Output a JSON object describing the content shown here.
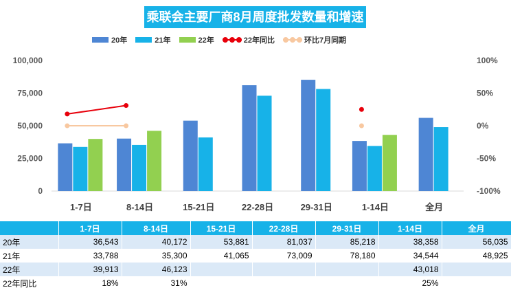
{
  "title": "乘联会主要厂商8月周度批发数量和增速",
  "legend": {
    "s20": "20年",
    "s21": "21年",
    "s22": "22年",
    "yoy22": "22年同比",
    "mom": "环比7月同期"
  },
  "colors": {
    "s20": "#4e86d4",
    "s21": "#17b2e8",
    "s22": "#92d050",
    "yoy22": "#e8000b",
    "mom": "#f8c8a0",
    "header": "#17b2e8"
  },
  "chart_data": {
    "type": "bar",
    "categories": [
      "1-7日",
      "8-14日",
      "15-21日",
      "22-28日",
      "29-31日",
      "1-14日",
      "全月"
    ],
    "series": [
      {
        "name": "20年",
        "values": [
          36543,
          40172,
          53881,
          81037,
          85218,
          38358,
          56035
        ]
      },
      {
        "name": "21年",
        "values": [
          33788,
          35300,
          41065,
          73009,
          78180,
          34544,
          48925
        ]
      },
      {
        "name": "22年",
        "values": [
          39913,
          46123,
          null,
          null,
          null,
          43018,
          null
        ]
      }
    ],
    "lines": [
      {
        "name": "22年同比",
        "values": [
          18,
          31,
          null,
          null,
          null,
          25,
          null
        ],
        "axis": "right"
      },
      {
        "name": "环比7月同期",
        "values": [
          0,
          0,
          null,
          null,
          null,
          0,
          null
        ],
        "axis": "right"
      }
    ],
    "y_left": {
      "min": 0,
      "max": 100000,
      "ticks": [
        "0",
        "25,000",
        "50,000",
        "75,000",
        "100,000"
      ]
    },
    "y_right": {
      "min": -100,
      "max": 100,
      "ticks": [
        "-100%",
        "-50%",
        "0%",
        "50%",
        "100%"
      ]
    },
    "legend_position": "top",
    "grid": false
  },
  "table": {
    "headers": [
      "",
      "1-7日",
      "8-14日",
      "15-21日",
      "22-28日",
      "29-31日",
      "1-14日",
      "全月"
    ],
    "rows": [
      [
        "20年",
        "36,543",
        "40,172",
        "53,881",
        "81,037",
        "85,218",
        "38,358",
        "56,035"
      ],
      [
        "21年",
        "33,788",
        "35,300",
        "41,065",
        "73,009",
        "78,180",
        "34,544",
        "48,925"
      ],
      [
        "22年",
        "39,913",
        "46,123",
        "",
        "",
        "",
        "43,018",
        ""
      ],
      [
        "22年同比",
        "18%",
        "31%",
        "",
        "",
        "",
        "25%",
        ""
      ]
    ]
  }
}
